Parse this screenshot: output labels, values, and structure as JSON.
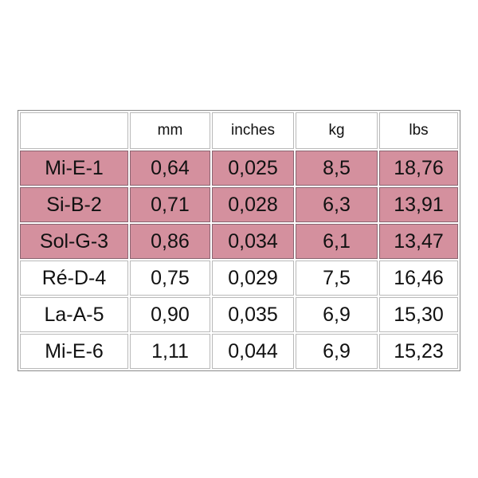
{
  "table": {
    "header": [
      "mm",
      "inches",
      "kg",
      "lbs"
    ],
    "rows": [
      [
        "Mi-E-1",
        "0,64",
        "0,025",
        "8,5",
        "18,76"
      ],
      [
        "Si-B-2",
        "0,71",
        "0,028",
        "6,3",
        "13,91"
      ],
      [
        "Sol-G-3",
        "0,86",
        "0,034",
        "6,1",
        "13,47"
      ],
      [
        "Ré-D-4",
        "0,75",
        "0,029",
        "7,5",
        "16,46"
      ],
      [
        "La-A-5",
        "0,90",
        "0,035",
        "6,9",
        "15,30"
      ],
      [
        "Mi-E-6",
        "1,11",
        "0,044",
        "6,9",
        "15,23"
      ]
    ]
  }
}
